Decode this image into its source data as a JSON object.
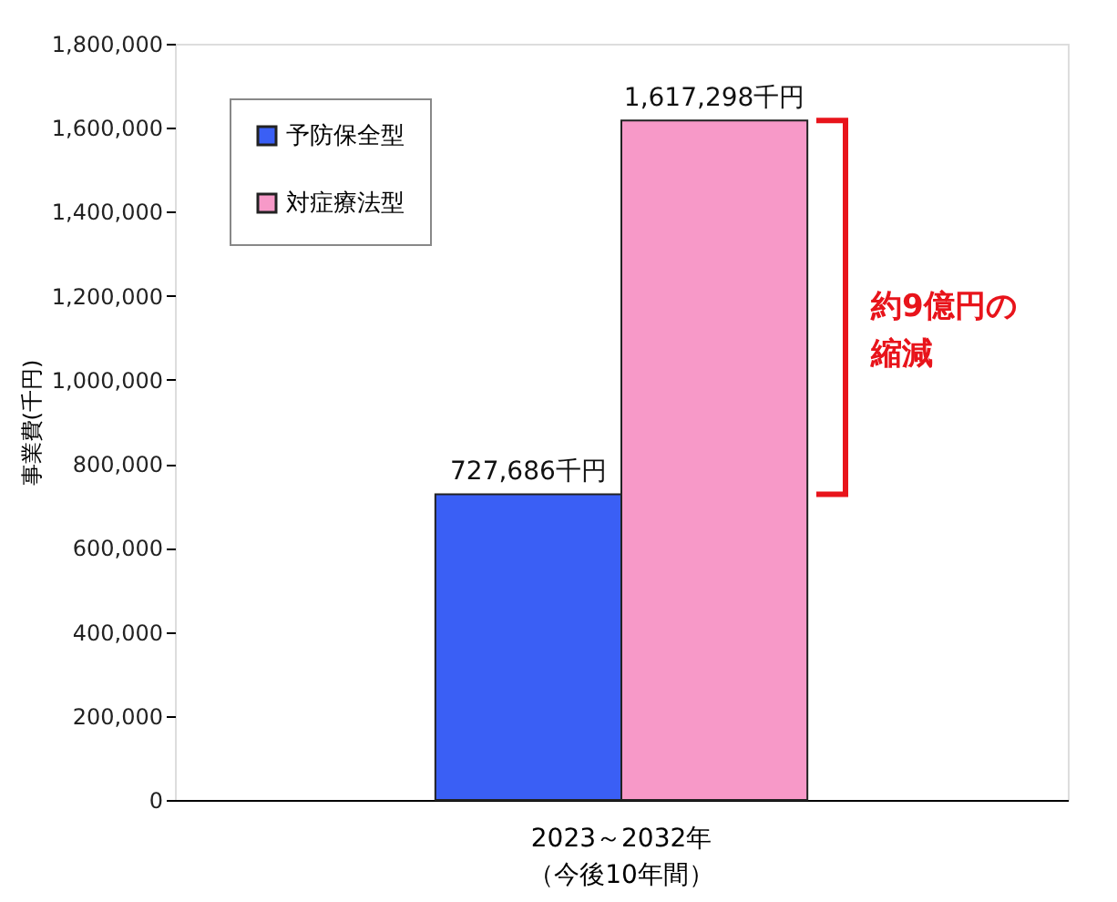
{
  "chart_data": {
    "type": "bar",
    "ylabel": "事業費(千円)",
    "categories": [
      "2023～2032年（今後10年間）"
    ],
    "series": [
      {
        "name": "予防保全型",
        "color": "#3a5ff5",
        "values": [
          727686
        ],
        "value_labels": [
          "727,686千円"
        ]
      },
      {
        "name": "対症療法型",
        "color": "#f799c8",
        "values": [
          1617298
        ],
        "value_labels": [
          "1,617,298千円"
        ]
      }
    ],
    "ylim": [
      0,
      1800000
    ],
    "yticks": [
      {
        "value": 0,
        "label": "0"
      },
      {
        "value": 200000,
        "label": "200,000"
      },
      {
        "value": 400000,
        "label": "400,000"
      },
      {
        "value": 600000,
        "label": "600,000"
      },
      {
        "value": 800000,
        "label": "800,000"
      },
      {
        "value": 1000000,
        "label": "1,000,000"
      },
      {
        "value": 1200000,
        "label": "1,200,000"
      },
      {
        "value": 1400000,
        "label": "1,400,000"
      },
      {
        "value": 1600000,
        "label": "1,600,000"
      },
      {
        "value": 1800000,
        "label": "1,800,000"
      }
    ],
    "legend": "top left",
    "grid": false,
    "annotations": [
      "約9億円の縮減"
    ]
  }
}
